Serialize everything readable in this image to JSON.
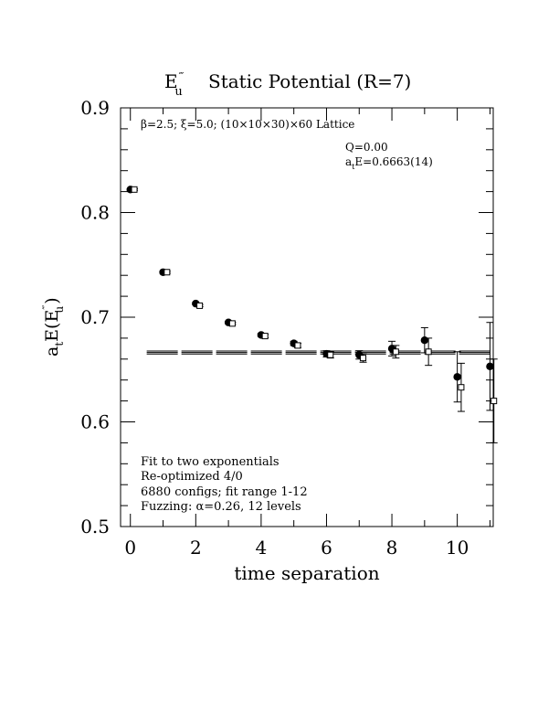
{
  "chart_data": {
    "type": "scatter",
    "title": {
      "main": "E",
      "main_sub": "u",
      "main_sup": "‴",
      "rest": "Static Potential (R=7)"
    },
    "xlabel": "time separation",
    "ylabel": {
      "prefix": "a",
      "prefix_sub": "t",
      "body": "E(E",
      "body_sup": "‴",
      "body_sub": "u",
      "suffix": ")"
    },
    "xlim": [
      -0.3,
      11.1
    ],
    "ylim": [
      0.5,
      0.9
    ],
    "xticks": [
      0,
      2,
      4,
      6,
      8,
      10
    ],
    "xtick_labels": [
      "0",
      "2",
      "4",
      "6",
      "8",
      "10"
    ],
    "yticks": [
      0.5,
      0.6,
      0.7,
      0.8,
      0.9
    ],
    "ytick_labels": [
      "0.5",
      "0.6",
      "0.7",
      "0.8",
      "0.9"
    ],
    "lattice_info": "β=2.5; ξ=5.0; (10×10×30)×60 Lattice",
    "q_label": "Q=0.00",
    "energy_label": {
      "prefix": "a",
      "sub": "t",
      "rest": "E=0.6663(14)"
    },
    "fit_notes": [
      "Fit to two exponentials",
      "Re-optimized 4/0",
      "6880 configs; fit range 1-12",
      "Fuzzing: α=0.26, 12 levels"
    ],
    "fit_band": {
      "x_range": [
        0.5,
        11.1
      ],
      "center": 0.6663,
      "error": 0.0014
    },
    "series": [
      {
        "marker": "filled-circle",
        "x": [
          0,
          1,
          2,
          3,
          4,
          5,
          6,
          7,
          8,
          9,
          10,
          11
        ],
        "y": [
          0.822,
          0.743,
          0.713,
          0.695,
          0.683,
          0.675,
          0.665,
          0.664,
          0.67,
          0.678,
          0.643,
          0.653
        ],
        "err": [
          0.0008,
          0.001,
          0.001,
          0.001,
          0.0015,
          0.002,
          0.003,
          0.004,
          0.007,
          0.012,
          0.024,
          0.042
        ]
      },
      {
        "marker": "open-square",
        "x": [
          0.12,
          1.12,
          2.12,
          3.12,
          4.12,
          5.12,
          6.12,
          7.12,
          8.12,
          9.12,
          10.12,
          11.12
        ],
        "y": [
          0.822,
          0.743,
          0.711,
          0.694,
          0.682,
          0.673,
          0.664,
          0.661,
          0.667,
          0.667,
          0.633,
          0.62
        ],
        "err": [
          0.0008,
          0.001,
          0.001,
          0.001,
          0.0015,
          0.002,
          0.003,
          0.004,
          0.006,
          0.013,
          0.023,
          0.04
        ]
      }
    ],
    "colors": {
      "ink": "#000000",
      "background": "#ffffff"
    }
  }
}
